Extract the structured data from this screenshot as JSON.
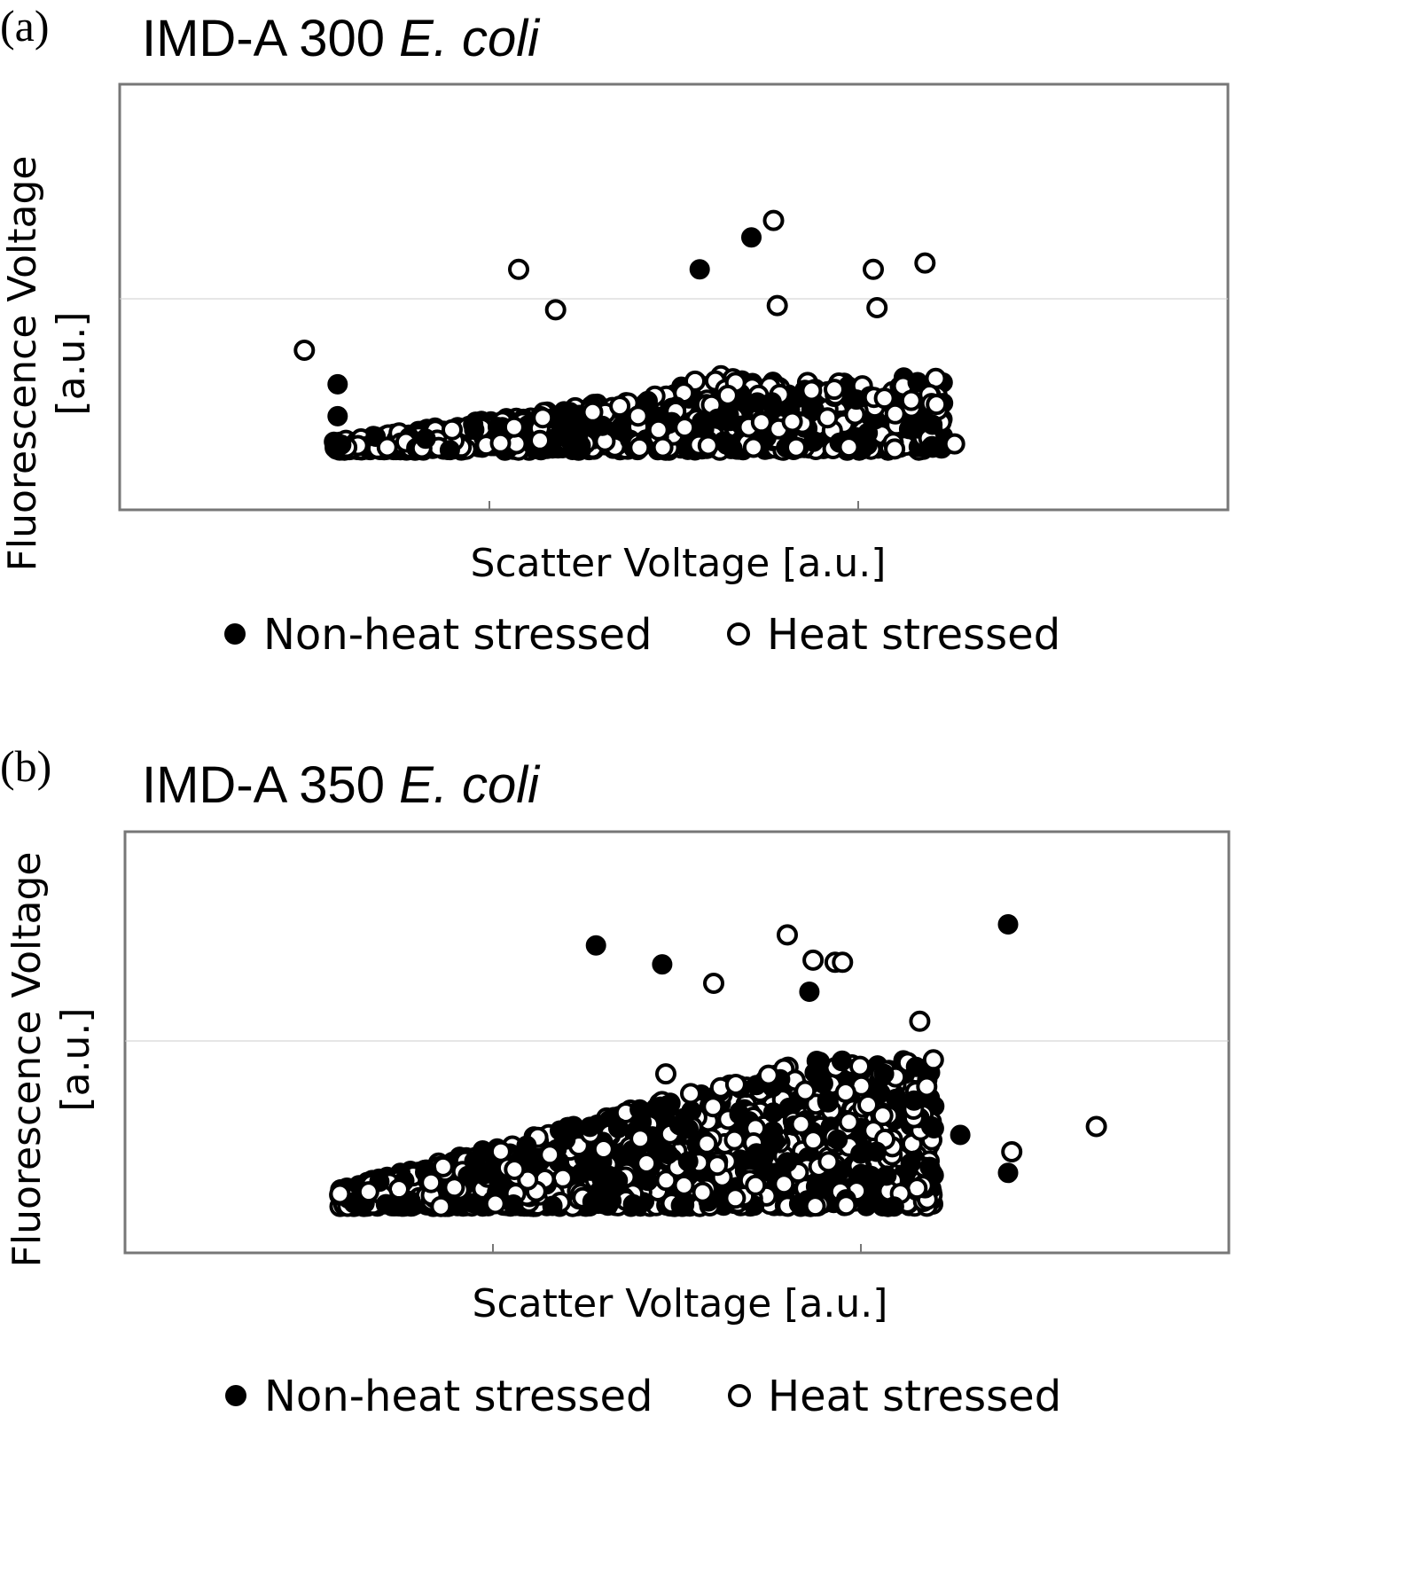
{
  "chart_data": [
    {
      "panel": "(a)",
      "title_prefix": "IMD-A 300",
      "title_italic": "E. coli",
      "type": "scatter",
      "xlabel": "Scatter Voltage [a.u.]",
      "ylabel_line1": "Fluorescence Voltage",
      "ylabel_line2": "[a.u.]",
      "xlim": [
        0,
        3
      ],
      "ylim": [
        0,
        2
      ],
      "grid": {
        "x_ticks": [
          1,
          2
        ],
        "y_gridlines": [
          1
        ]
      },
      "legend_placement": "bottom",
      "series": [
        {
          "name": "Non-heat stressed",
          "marker": "filled-circle",
          "color": "#000000",
          "points_summary": "dense cluster at y≈0.28–0.7 spanning x≈0.58–2.25, densest x≈0.9–2.2",
          "outliers": [
            [
              0.59,
              0.59
            ],
            [
              0.59,
              0.44
            ],
            [
              1.57,
              1.13
            ],
            [
              1.71,
              1.28
            ],
            [
              2.16,
              0.6
            ],
            [
              2.2,
              0.4
            ]
          ]
        },
        {
          "name": "Heat stressed",
          "marker": "open-circle",
          "color": "#000000",
          "points_summary": "dense cluster at y≈0.3–0.8 spanning x≈0.5–2.2",
          "outliers": [
            [
              0.5,
              0.75
            ],
            [
              1.08,
              1.13
            ],
            [
              1.18,
              0.94
            ],
            [
              1.77,
              1.36
            ],
            [
              1.78,
              0.96
            ],
            [
              2.04,
              1.13
            ],
            [
              2.05,
              0.95
            ],
            [
              2.18,
              1.16
            ],
            [
              2.26,
              0.31
            ]
          ]
        }
      ]
    },
    {
      "panel": "(b)",
      "title_prefix": "IMD-A 350",
      "title_italic": "E. coli",
      "type": "scatter",
      "xlabel": "Scatter Voltage [a.u.]",
      "ylabel_line1": "Fluorescence Voltage",
      "ylabel_line2": "[a.u.]",
      "xlim": [
        0,
        3
      ],
      "ylim": [
        0,
        2
      ],
      "grid": {
        "x_ticks": [
          1,
          2
        ],
        "y_gridlines": [
          1
        ]
      },
      "legend_placement": "bottom",
      "series": [
        {
          "name": "Non-heat stressed",
          "marker": "filled-circle",
          "color": "#000000",
          "points_summary": "triangular cloud rising from x≈0.6 to x≈2.0, y≈0.25–1.0",
          "outliers": [
            [
              1.28,
              1.46
            ],
            [
              1.46,
              1.37
            ],
            [
              2.4,
              1.56
            ],
            [
              2.4,
              0.38
            ],
            [
              2.27,
              0.56
            ],
            [
              1.86,
              1.24
            ],
            [
              2.09,
              0.22
            ]
          ]
        },
        {
          "name": "Heat stressed",
          "marker": "open-circle",
          "color": "#000000",
          "points_summary": "triangular cloud rising from x≈0.6 to x≈2.0, y≈0.25–1.0",
          "outliers": [
            [
              1.6,
              1.28
            ],
            [
              1.8,
              1.51
            ],
            [
              1.87,
              1.39
            ],
            [
              1.93,
              1.38
            ],
            [
              1.95,
              1.38
            ],
            [
              2.16,
              1.1
            ],
            [
              2.41,
              0.48
            ],
            [
              2.64,
              0.6
            ],
            [
              1.47,
              0.85
            ]
          ]
        }
      ]
    }
  ]
}
